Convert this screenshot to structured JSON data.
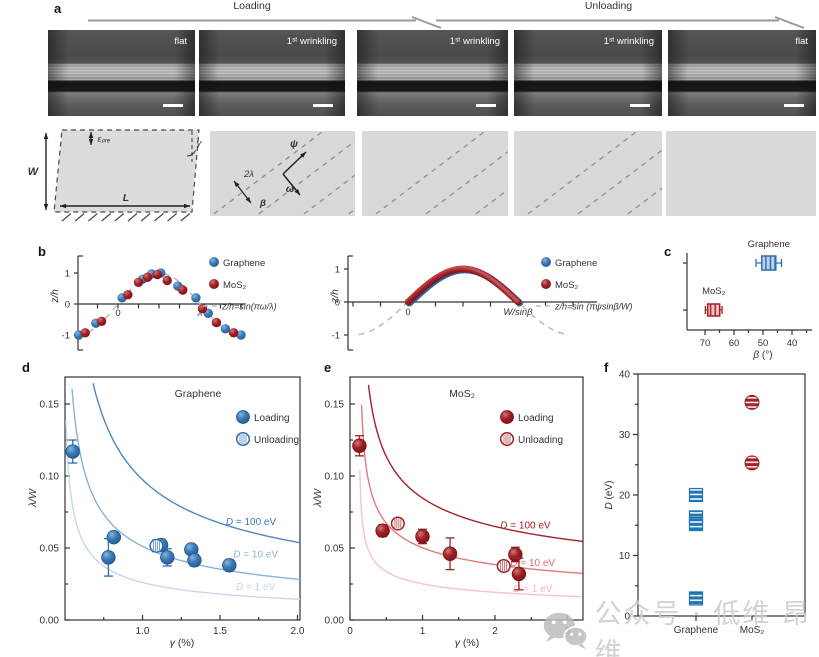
{
  "figure": {
    "panel_labels": {
      "a": "a",
      "b": "b",
      "c": "c",
      "d": "d",
      "e": "e",
      "f": "f"
    },
    "watermark_text": "公众号 · 低维 昂维"
  },
  "panel_a": {
    "loading_label": "Loading",
    "unloading_label": "Unloading",
    "images": [
      {
        "label": "flat"
      },
      {
        "label": "1ˢᵗ wrinkling"
      },
      {
        "label": "1ˢᵗ wrinkling"
      },
      {
        "label": "1ˢᵗ wrinkling"
      },
      {
        "label": "flat"
      }
    ],
    "schematic": {
      "width_label": "W",
      "length_label": "L",
      "prestrain_label": "εₚᵣₑ",
      "shear_label": "γ",
      "wavelength_label": "2λ",
      "beta_label": "β",
      "psi_label": "ψ",
      "omega_label": "ω"
    }
  },
  "chart_data": [
    {
      "id": "b1",
      "type": "scatter",
      "ylabel": "z/h",
      "yticks": [
        1,
        0,
        -1
      ],
      "ytick_labels": [
        "1",
        "0",
        "-1"
      ],
      "xtick_labels": [
        "0",
        "λ"
      ],
      "ref_label": "z/h=sin(πω/λ)",
      "ref_curve": "sin(pi*x)",
      "xrange_lambda": [
        -0.49,
        1.55
      ],
      "series": [
        {
          "name": "Graphene",
          "color": "#2f6eb2",
          "points": [
            [
              -0.48,
              -1.0
            ],
            [
              -0.27,
              -0.62
            ],
            [
              0.05,
              0.2
            ],
            [
              0.3,
              0.8
            ],
            [
              0.41,
              0.97
            ],
            [
              0.52,
              1.0
            ],
            [
              0.73,
              0.58
            ],
            [
              0.95,
              0.2
            ],
            [
              1.1,
              -0.3
            ],
            [
              1.31,
              -0.8
            ],
            [
              1.5,
              -1.0
            ]
          ]
        },
        {
          "name": "MoS₂",
          "color": "#a02125",
          "points": [
            [
              -0.4,
              -0.93
            ],
            [
              -0.2,
              -0.56
            ],
            [
              0.12,
              0.3
            ],
            [
              0.25,
              0.7
            ],
            [
              0.36,
              0.86
            ],
            [
              0.48,
              0.95
            ],
            [
              0.6,
              0.76
            ],
            [
              0.79,
              0.45
            ],
            [
              1.03,
              -0.15
            ],
            [
              1.2,
              -0.6
            ],
            [
              1.41,
              -0.93
            ]
          ]
        }
      ]
    },
    {
      "id": "b2",
      "type": "scatter",
      "ylabel": "z/h",
      "yticks": [
        1,
        0,
        -1
      ],
      "ytick_labels": [
        "1",
        "0",
        "-1"
      ],
      "xtick_labels": [
        "0",
        "W/sinβ"
      ],
      "ref_label": "z/h=sin (πψsinβ/W)",
      "ref_curve": "sin(pi*x)",
      "xrange": [
        -0.45,
        1.45
      ],
      "arch": {
        "from": 0,
        "to": 1,
        "n": 65,
        "peak": 1
      },
      "series": [
        {
          "name": "Graphene",
          "color": "#2f6eb2"
        },
        {
          "name": "MoS₂",
          "color": "#a02125"
        }
      ]
    },
    {
      "id": "c",
      "type": "scatter",
      "xlabel": "β (°)",
      "xticks": [
        70,
        60,
        50,
        40
      ],
      "xtick_labels": [
        "70",
        "60",
        "50",
        "40"
      ],
      "xlim": [
        75,
        35
      ],
      "points": [
        {
          "name": "Graphene",
          "beta": 48,
          "beta_err": 3,
          "fill": "#bdd4ea",
          "stroke": "#2f6eb2"
        },
        {
          "name": "MoS₂",
          "beta": 67,
          "beta_err": 1.5,
          "fill": "#f2c4c4",
          "stroke": "#a32126"
        }
      ]
    },
    {
      "id": "d",
      "type": "scatter",
      "title": "Graphene",
      "xlabel": "γ (%)",
      "ylabel": "λ/W",
      "xlim": [
        0.5,
        2.0
      ],
      "ylim": [
        0,
        0.169
      ],
      "xticks": [
        1.0,
        1.5,
        2.0
      ],
      "xtick_labels": [
        "1.0",
        "1.5",
        "2.0"
      ],
      "yticks": [
        0,
        0.05,
        0.1,
        0.15
      ],
      "ytick_labels": [
        "0.00",
        "0.05",
        "0.10",
        "0.15"
      ],
      "legend": [
        {
          "label": "Loading",
          "style": "filled"
        },
        {
          "label": "Unloading",
          "style": "open"
        }
      ],
      "color": "#2f6eb2",
      "loading": [
        [
          0.55,
          0.117,
          0.008
        ],
        [
          0.78,
          0.0435,
          0.013
        ],
        [
          0.815,
          0.0575,
          0.003
        ],
        [
          1.12,
          0.052,
          0.004
        ],
        [
          1.16,
          0.0435,
          0.006
        ],
        [
          1.315,
          0.049,
          0.003
        ],
        [
          1.335,
          0.0415,
          0.004
        ],
        [
          1.56,
          0.038,
          0.004
        ]
      ],
      "unloading": [
        [
          1.09,
          0.0515,
          0.004
        ]
      ],
      "curves": [
        {
          "label": "D = 100 eV",
          "amplitude": 0.068,
          "gamma0": 0.48,
          "exponent": 0.55,
          "color": "#4e87c0",
          "label_color": "#3d79b5",
          "label_at": [
            1.7,
            0.066
          ]
        },
        {
          "label": "D = 10 eV",
          "amplitude": 0.0357,
          "gamma0": 0.48,
          "exponent": 0.55,
          "color": "#8ab2d8",
          "label_color": "#8ab2d8",
          "label_at": [
            1.73,
            0.0435
          ]
        },
        {
          "label": "D = 1 eV",
          "amplitude": 0.0182,
          "gamma0": 0.48,
          "exponent": 0.55,
          "color": "#c5d8ec",
          "label_color": "#bcd3e9",
          "label_at": [
            1.73,
            0.021
          ]
        }
      ]
    },
    {
      "id": "e",
      "type": "scatter",
      "title": "MoS₂",
      "xlabel": "γ (%)",
      "ylabel": "λ/W",
      "xlim": [
        0,
        3.2
      ],
      "ylim": [
        0,
        0.169
      ],
      "xticks": [
        0,
        1,
        2,
        3
      ],
      "xtick_labels": [
        "0",
        "1",
        "2",
        "3"
      ],
      "yticks": [
        0,
        0.05,
        0.1,
        0.15
      ],
      "ytick_labels": [
        "0.00",
        "0.05",
        "0.10",
        "0.15"
      ],
      "legend": [
        {
          "label": "Loading",
          "style": "filled"
        },
        {
          "label": "Unloading",
          "style": "open"
        }
      ],
      "color": "#a02125",
      "loading": [
        [
          0.13,
          0.121,
          0.007
        ],
        [
          0.45,
          0.062,
          0.004
        ],
        [
          1.0,
          0.058,
          0.005
        ],
        [
          1.38,
          0.046,
          0.011
        ],
        [
          2.28,
          0.0455,
          0.005
        ],
        [
          2.33,
          0.032,
          0.011
        ]
      ],
      "unloading": [
        [
          0.66,
          0.067,
          0.003
        ],
        [
          2.12,
          0.0375,
          0.002
        ]
      ],
      "curves": [
        {
          "label": "D = 100 eV",
          "amplitude": 0.081,
          "gamma0": 0.12,
          "exponent": 0.35,
          "color": "#a32126",
          "label_color": "#9e2023",
          "label_at": [
            2.42,
            0.0635
          ]
        },
        {
          "label": "D = 10 eV",
          "amplitude": 0.048,
          "gamma0": 0.12,
          "exponent": 0.35,
          "color": "#e2797b",
          "label_color": "#e0696c",
          "label_at": [
            2.52,
            0.0375
          ]
        },
        {
          "label": "D = 1 eV",
          "amplitude": 0.024,
          "gamma0": 0.12,
          "exponent": 0.35,
          "color": "#f5c4c5",
          "label_color": "#f2b7b8",
          "label_at": [
            2.52,
            0.0195
          ]
        }
      ]
    },
    {
      "id": "f",
      "type": "scatter",
      "ylabel": "D (eV)",
      "ylim": [
        0,
        40
      ],
      "yticks": [
        0,
        10,
        20,
        30,
        40
      ],
      "ytick_labels": [
        "0",
        "10",
        "20",
        "30",
        "40"
      ],
      "categories": [
        "Graphene",
        "MoS₂"
      ],
      "series": [
        {
          "name": "Graphene",
          "color": "#1f74b4",
          "marker": "square-hstripe",
          "values": [
            20,
            16.3,
            15.2,
            2.9
          ]
        },
        {
          "name": "MoS₂",
          "color": "#a32126",
          "marker": "circle-hstripe",
          "values": [
            35.3,
            25.3
          ]
        }
      ]
    }
  ]
}
